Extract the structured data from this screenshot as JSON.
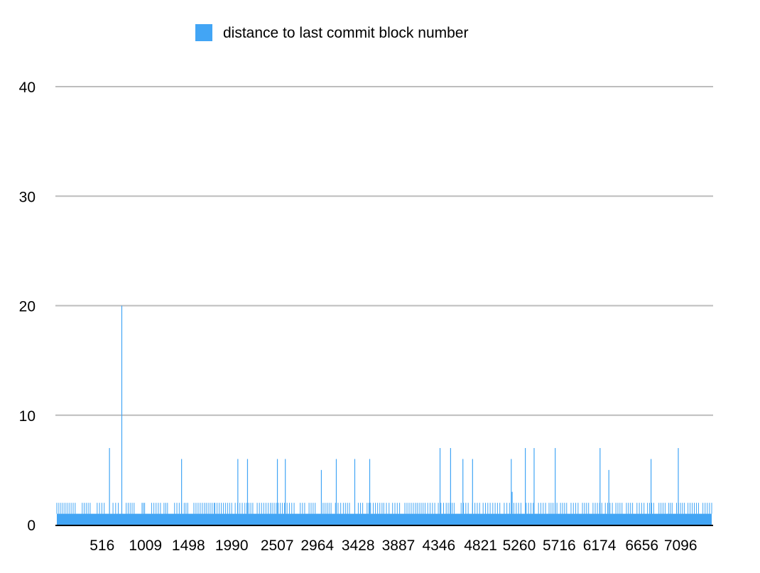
{
  "chart_data": {
    "type": "bar",
    "title": "",
    "xlabel": "",
    "ylabel": "",
    "ylim": [
      0,
      40
    ],
    "yticks": [
      0,
      10,
      20,
      30,
      40
    ],
    "xticks": [
      516,
      1009,
      1498,
      1990,
      2507,
      2964,
      3428,
      3887,
      4346,
      4821,
      5260,
      5716,
      6174,
      6656,
      7096
    ],
    "x_range": [
      1,
      7450
    ],
    "grid": true,
    "legend_position": "top",
    "series": [
      {
        "name": "distance to last commit block number",
        "color": "#42a5f5",
        "baseline_value": 1,
        "points": [
          {
            "x": 600,
            "y": 7
          },
          {
            "x": 740,
            "y": 20
          },
          {
            "x": 1420,
            "y": 6
          },
          {
            "x": 2060,
            "y": 6
          },
          {
            "x": 2170,
            "y": 6
          },
          {
            "x": 2510,
            "y": 6
          },
          {
            "x": 2600,
            "y": 6
          },
          {
            "x": 3010,
            "y": 5
          },
          {
            "x": 3180,
            "y": 6
          },
          {
            "x": 3390,
            "y": 6
          },
          {
            "x": 3560,
            "y": 6
          },
          {
            "x": 4360,
            "y": 7
          },
          {
            "x": 4480,
            "y": 7
          },
          {
            "x": 4620,
            "y": 6
          },
          {
            "x": 4730,
            "y": 6
          },
          {
            "x": 5170,
            "y": 6
          },
          {
            "x": 5180,
            "y": 3
          },
          {
            "x": 5330,
            "y": 7
          },
          {
            "x": 5430,
            "y": 7
          },
          {
            "x": 5670,
            "y": 7
          },
          {
            "x": 6180,
            "y": 7
          },
          {
            "x": 6280,
            "y": 5
          },
          {
            "x": 6760,
            "y": 6
          },
          {
            "x": 7070,
            "y": 7
          }
        ],
        "level2_clusters": [
          [
            1,
            210
          ],
          [
            290,
            380
          ],
          [
            460,
            540
          ],
          [
            640,
            700
          ],
          [
            790,
            880
          ],
          [
            970,
            1000
          ],
          [
            1080,
            1180
          ],
          [
            1220,
            1260
          ],
          [
            1340,
            1420
          ],
          [
            1450,
            1490
          ],
          [
            1560,
            1680
          ],
          [
            1700,
            1790
          ],
          [
            1800,
            1990
          ],
          [
            2030,
            2110
          ],
          [
            2140,
            2230
          ],
          [
            2280,
            2430
          ],
          [
            2450,
            2590
          ],
          [
            2620,
            2700
          ],
          [
            2770,
            2820
          ],
          [
            2870,
            2940
          ],
          [
            3030,
            3120
          ],
          [
            3170,
            3230
          ],
          [
            3260,
            3330
          ],
          [
            3430,
            3480
          ],
          [
            3530,
            3570
          ],
          [
            3600,
            3700
          ],
          [
            3720,
            3780
          ],
          [
            3820,
            3900
          ],
          [
            3960,
            4080
          ],
          [
            4100,
            4190
          ],
          [
            4220,
            4300
          ],
          [
            4340,
            4400
          ],
          [
            4430,
            4520
          ],
          [
            4600,
            4680
          ],
          [
            4730,
            4810
          ],
          [
            4850,
            4930
          ],
          [
            4960,
            5040
          ],
          [
            5090,
            5150
          ],
          [
            5200,
            5280
          ],
          [
            5340,
            5420
          ],
          [
            5480,
            5560
          ],
          [
            5600,
            5690
          ],
          [
            5730,
            5800
          ],
          [
            5850,
            5930
          ],
          [
            5980,
            6050
          ],
          [
            6100,
            6200
          ],
          [
            6240,
            6320
          ],
          [
            6360,
            6430
          ],
          [
            6480,
            6550
          ],
          [
            6600,
            6680
          ],
          [
            6720,
            6790
          ],
          [
            6850,
            6920
          ],
          [
            6960,
            7000
          ],
          [
            7050,
            7140
          ],
          [
            7180,
            7300
          ],
          [
            7350,
            7450
          ]
        ]
      }
    ]
  }
}
